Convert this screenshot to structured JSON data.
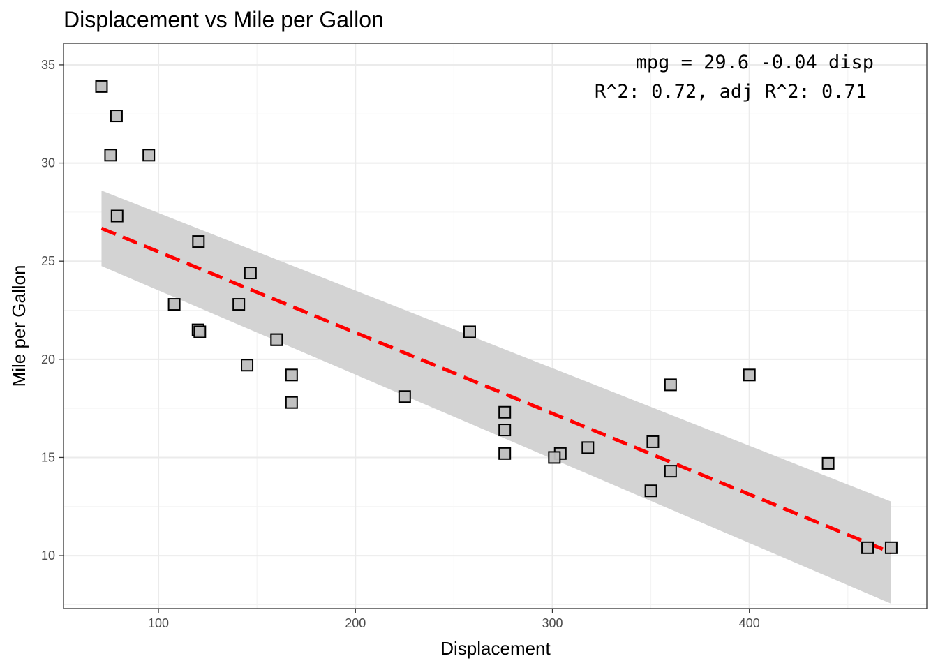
{
  "chart_data": {
    "type": "scatter",
    "title": "Displacement vs Mile per Gallon",
    "xlabel": "Displacement",
    "ylabel": "Mile per Gallon",
    "xlim": [
      51.8,
      490.1
    ],
    "ylim": [
      7.3,
      36.1
    ],
    "x_ticks": [
      100,
      200,
      300,
      400
    ],
    "y_ticks": [
      10,
      15,
      20,
      25,
      30,
      35
    ],
    "grid": true,
    "legend": "none",
    "points": [
      {
        "x": 160,
        "y": 21.0
      },
      {
        "x": 160,
        "y": 21.0
      },
      {
        "x": 108,
        "y": 22.8
      },
      {
        "x": 258,
        "y": 21.4
      },
      {
        "x": 360,
        "y": 18.7
      },
      {
        "x": 225,
        "y": 18.1
      },
      {
        "x": 360,
        "y": 14.3
      },
      {
        "x": 146.7,
        "y": 24.4
      },
      {
        "x": 140.8,
        "y": 22.8
      },
      {
        "x": 167.6,
        "y": 19.2
      },
      {
        "x": 167.6,
        "y": 17.8
      },
      {
        "x": 275.8,
        "y": 16.4
      },
      {
        "x": 275.8,
        "y": 17.3
      },
      {
        "x": 275.8,
        "y": 15.2
      },
      {
        "x": 472,
        "y": 10.4
      },
      {
        "x": 460,
        "y": 10.4
      },
      {
        "x": 440,
        "y": 14.7
      },
      {
        "x": 78.7,
        "y": 32.4
      },
      {
        "x": 75.7,
        "y": 30.4
      },
      {
        "x": 71.1,
        "y": 33.9
      },
      {
        "x": 120.1,
        "y": 21.5
      },
      {
        "x": 318,
        "y": 15.5
      },
      {
        "x": 304,
        "y": 15.2
      },
      {
        "x": 350,
        "y": 13.3
      },
      {
        "x": 400,
        "y": 19.2
      },
      {
        "x": 79,
        "y": 27.3
      },
      {
        "x": 120.3,
        "y": 26.0
      },
      {
        "x": 95.1,
        "y": 30.4
      },
      {
        "x": 351,
        "y": 15.8
      },
      {
        "x": 145,
        "y": 19.7
      },
      {
        "x": 301,
        "y": 15.0
      },
      {
        "x": 121,
        "y": 21.4
      }
    ],
    "fit_line": {
      "intercept": 29.6,
      "slope": -0.0412,
      "x_range": [
        71.1,
        472
      ],
      "color": "#ff0000",
      "style": "dashed"
    },
    "confidence_band": {
      "x": [
        71.1,
        472
      ],
      "lower": [
        24.75,
        7.55
      ],
      "upper": [
        28.6,
        12.75
      ],
      "color": "#d3d3d3"
    },
    "annotations": [
      "mpg = 29.6 -0.04 disp",
      "R^2: 0.72, adj R^2: 0.71"
    ],
    "colors": {
      "point_fill": "#bebebe",
      "point_stroke": "#000000",
      "grid_major": "#ebebeb",
      "grid_minor": "#f3f3f3",
      "panel_border": "#333333"
    }
  }
}
